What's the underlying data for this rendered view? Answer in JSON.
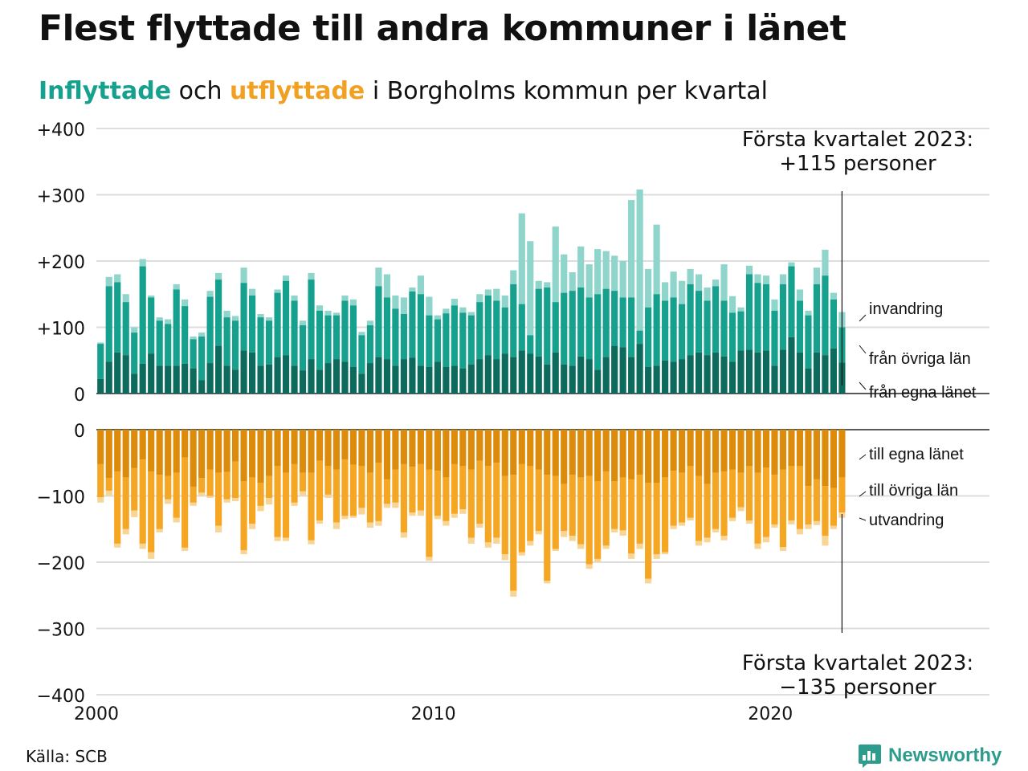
{
  "header": {
    "title": "Flest flyttade till andra kommuner i länet",
    "subtitle_in": "Inflyttade",
    "subtitle_mid": "och",
    "subtitle_out": "utflyttade",
    "subtitle_rest": "i Borgholms kommun per kvartal"
  },
  "footer": {
    "source": "Källa: SCB",
    "brand": "Newsworthy"
  },
  "colors": {
    "in_own": "#0d6b5e",
    "in_other": "#16a08e",
    "in_immig": "#8fd5cb",
    "out_own": "#dd8b0b",
    "out_other": "#f5a623",
    "out_emig": "#f8d595",
    "grid": "#dddddd"
  },
  "chart_data": {
    "type": "bar",
    "stacked": true,
    "y_ticks": [
      "+400",
      "+300",
      "+200",
      "+100",
      "0"
    ],
    "y_ticks_lower": [
      "0",
      "−100",
      "−200",
      "−300",
      "−400"
    ],
    "x_ticks": [
      "2000",
      "2010",
      "2020"
    ],
    "ylim_upper": [
      0,
      400
    ],
    "ylim_lower": [
      -400,
      0
    ],
    "x_range": [
      2000,
      2026.5
    ],
    "grid": true,
    "series_labels": {
      "in_immig": "invandring",
      "in_other": "från övriga län",
      "in_own": "från egna länet",
      "out_own": "till egna länet",
      "out_other": "till övriga län",
      "out_emig": "utvandring"
    },
    "annotation_top": [
      "Första kvartalet 2023:",
      "+115 personer"
    ],
    "annotation_bottom": [
      "Första kvartalet 2023:",
      "−135 personer"
    ],
    "inflow_total": [
      77,
      176,
      180,
      150,
      100,
      203,
      148,
      115,
      112,
      165,
      142,
      86,
      92,
      155,
      182,
      125,
      117,
      190,
      158,
      120,
      115,
      157,
      178,
      148,
      110,
      182,
      133,
      125,
      122,
      148,
      142,
      93,
      110,
      190,
      180,
      148,
      145,
      160,
      178,
      146,
      118,
      128,
      143,
      130,
      123,
      150,
      157,
      158,
      148,
      186,
      272,
      230,
      170,
      168,
      252,
      210,
      183,
      222,
      195,
      218,
      215,
      208,
      200,
      292,
      308,
      188,
      255,
      168,
      184,
      170,
      188,
      180,
      160,
      172,
      195,
      147,
      130,
      193,
      180,
      178,
      142,
      180,
      198,
      157,
      125,
      190,
      217,
      152,
      123
    ],
    "inflow_other": [
      75,
      162,
      168,
      138,
      92,
      192,
      145,
      110,
      105,
      157,
      132,
      82,
      86,
      146,
      172,
      115,
      110,
      167,
      148,
      115,
      110,
      152,
      170,
      140,
      103,
      172,
      125,
      118,
      118,
      140,
      133,
      88,
      103,
      162,
      145,
      128,
      120,
      154,
      150,
      118,
      112,
      121,
      133,
      122,
      118,
      138,
      148,
      140,
      130,
      165,
      135,
      88,
      158,
      160,
      138,
      152,
      155,
      160,
      145,
      150,
      158,
      155,
      145,
      145,
      95,
      130,
      150,
      140,
      145,
      135,
      165,
      155,
      140,
      162,
      140,
      122,
      124,
      180,
      167,
      165,
      125,
      165,
      192,
      140,
      118,
      165,
      178,
      142,
      100
    ],
    "inflow_own": [
      22,
      48,
      62,
      58,
      30,
      45,
      60,
      42,
      42,
      42,
      45,
      38,
      20,
      46,
      72,
      42,
      36,
      65,
      62,
      42,
      44,
      55,
      58,
      42,
      35,
      52,
      36,
      46,
      52,
      48,
      40,
      30,
      46,
      55,
      52,
      42,
      52,
      54,
      42,
      40,
      48,
      40,
      42,
      38,
      44,
      52,
      58,
      52,
      60,
      55,
      65,
      60,
      56,
      44,
      62,
      44,
      42,
      56,
      52,
      36,
      55,
      72,
      70,
      55,
      75,
      40,
      42,
      50,
      48,
      52,
      58,
      62,
      58,
      62,
      56,
      48,
      65,
      66,
      62,
      65,
      42,
      66,
      85,
      62,
      38,
      62,
      58,
      68,
      47
    ],
    "outflow_total": [
      110,
      100,
      178,
      158,
      132,
      180,
      195,
      155,
      112,
      140,
      183,
      115,
      100,
      103,
      155,
      110,
      108,
      188,
      150,
      123,
      113,
      168,
      168,
      115,
      100,
      173,
      142,
      103,
      150,
      135,
      133,
      128,
      148,
      145,
      118,
      118,
      163,
      130,
      130,
      198,
      135,
      145,
      133,
      127,
      172,
      148,
      178,
      172,
      197,
      252,
      190,
      175,
      158,
      232,
      183,
      162,
      168,
      180,
      210,
      200,
      180,
      155,
      160,
      195,
      180,
      232,
      195,
      188,
      150,
      145,
      137,
      175,
      170,
      155,
      167,
      138,
      123,
      142,
      180,
      170,
      148,
      183,
      143,
      158,
      150,
      144,
      175,
      150,
      133
    ],
    "outflow_other": [
      102,
      92,
      172,
      150,
      122,
      172,
      185,
      150,
      105,
      133,
      178,
      110,
      95,
      100,
      145,
      105,
      103,
      182,
      142,
      115,
      103,
      162,
      163,
      110,
      93,
      167,
      137,
      98,
      140,
      130,
      130,
      118,
      140,
      138,
      112,
      110,
      155,
      125,
      122,
      192,
      130,
      138,
      127,
      120,
      163,
      142,
      170,
      163,
      188,
      243,
      185,
      168,
      153,
      228,
      180,
      153,
      160,
      173,
      203,
      195,
      175,
      150,
      152,
      187,
      172,
      225,
      188,
      185,
      145,
      140,
      133,
      168,
      163,
      150,
      160,
      133,
      117,
      137,
      172,
      162,
      143,
      177,
      137,
      150,
      143,
      138,
      160,
      145,
      125
    ],
    "outflow_own": [
      52,
      73,
      63,
      72,
      58,
      45,
      63,
      68,
      70,
      65,
      42,
      86,
      73,
      60,
      65,
      64,
      48,
      78,
      72,
      80,
      70,
      55,
      65,
      52,
      65,
      65,
      47,
      55,
      60,
      45,
      53,
      55,
      65,
      50,
      75,
      60,
      52,
      56,
      52,
      60,
      62,
      72,
      52,
      55,
      60,
      47,
      55,
      50,
      70,
      68,
      52,
      55,
      60,
      68,
      70,
      82,
      68,
      72,
      70,
      78,
      63,
      78,
      72,
      75,
      68,
      80,
      80,
      72,
      62,
      65,
      55,
      70,
      82,
      65,
      63,
      60,
      65,
      55,
      65,
      57,
      68,
      60,
      55,
      55,
      85,
      75,
      85,
      88,
      72
    ]
  }
}
